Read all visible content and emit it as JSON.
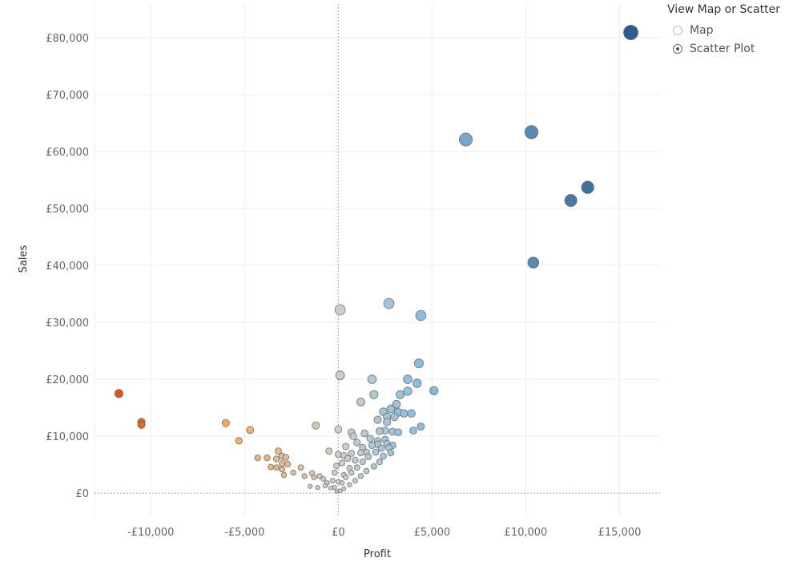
{
  "chart_data": {
    "type": "scatter",
    "xlabel": "Profit",
    "ylabel": "Sales",
    "xlim": [
      -13000,
      17200
    ],
    "ylim": [
      -4200,
      85900
    ],
    "x_ticks": [
      -10000,
      -5000,
      0,
      5000,
      10000,
      15000
    ],
    "x_tick_labels": [
      "-£10,000",
      "-£5,000",
      "£0",
      "£5,000",
      "£10,000",
      "£15,000"
    ],
    "y_ticks": [
      0,
      10000,
      20000,
      30000,
      40000,
      50000,
      60000,
      70000,
      80000
    ],
    "y_tick_labels": [
      "£0",
      "£10,000",
      "£20,000",
      "£30,000",
      "£40,000",
      "£50,000",
      "£60,000",
      "£70,000",
      "£80,000"
    ],
    "grid": true,
    "size_by": "Sales",
    "color_by": "Profit",
    "colors": {
      "negative": "#d4521d",
      "mid_negative": "#f5a95c",
      "zero": "#cfcfca",
      "mid_positive": "#8fc0e0",
      "positive": "#2a5a8c"
    },
    "points": [
      [
        15600,
        80900
      ],
      [
        10300,
        63400
      ],
      [
        6800,
        62100
      ],
      [
        13300,
        53700
      ],
      [
        12400,
        51400
      ],
      [
        10400,
        40500
      ],
      [
        2700,
        33300
      ],
      [
        4400,
        31200
      ],
      [
        100,
        32200
      ],
      [
        100,
        20700
      ],
      [
        1800,
        20000
      ],
      [
        3700,
        20000
      ],
      [
        4300,
        22800
      ],
      [
        5100,
        18000
      ],
      [
        4200,
        19300
      ],
      [
        1900,
        17300
      ],
      [
        3300,
        17300
      ],
      [
        3700,
        17900
      ],
      [
        1200,
        16000
      ],
      [
        3100,
        15600
      ],
      [
        2800,
        14800
      ],
      [
        2400,
        14300
      ],
      [
        3200,
        14200
      ],
      [
        3500,
        14000
      ],
      [
        3900,
        14000
      ],
      [
        2600,
        13400
      ],
      [
        3000,
        13400
      ],
      [
        2100,
        12900
      ],
      [
        2600,
        12500
      ],
      [
        4400,
        11700
      ],
      [
        4000,
        11000
      ],
      [
        -11700,
        17500
      ],
      [
        -10500,
        12500
      ],
      [
        -10500,
        12000
      ],
      [
        -6000,
        12300
      ],
      [
        -4700,
        11100
      ],
      [
        -5300,
        9200
      ],
      [
        -1200,
        11900
      ],
      [
        0,
        11200
      ],
      [
        -500,
        7400
      ],
      [
        -3200,
        7400
      ],
      [
        -3000,
        6500
      ],
      [
        -3300,
        6000
      ],
      [
        -2800,
        6300
      ],
      [
        -3800,
        6200
      ],
      [
        -4300,
        6200
      ],
      [
        -3000,
        5200
      ],
      [
        -2700,
        5100
      ],
      [
        -3300,
        4500
      ],
      [
        -3000,
        4200
      ],
      [
        -3600,
        4600
      ],
      [
        -2900,
        3200
      ],
      [
        -2400,
        3600
      ],
      [
        -2000,
        4500
      ],
      [
        -1800,
        3000
      ],
      [
        -1400,
        3500
      ],
      [
        -1000,
        3000
      ],
      [
        -1300,
        2800
      ],
      [
        -800,
        2500
      ],
      [
        -600,
        1800
      ],
      [
        -1500,
        1200
      ],
      [
        -1100,
        1000
      ],
      [
        -700,
        1300
      ],
      [
        -400,
        900
      ],
      [
        -300,
        2200
      ],
      [
        -200,
        3600
      ],
      [
        -100,
        4800
      ],
      [
        200,
        5300
      ],
      [
        500,
        6100
      ],
      [
        700,
        7000
      ],
      [
        400,
        8200
      ],
      [
        700,
        10700
      ],
      [
        800,
        10000
      ],
      [
        1000,
        8900
      ],
      [
        1300,
        8000
      ],
      [
        1500,
        7200
      ],
      [
        1800,
        8400
      ],
      [
        2100,
        9200
      ],
      [
        2600,
        8700
      ],
      [
        2700,
        8000
      ],
      [
        2400,
        6500
      ],
      [
        2200,
        5500
      ],
      [
        1900,
        4700
      ],
      [
        1500,
        3900
      ],
      [
        1200,
        3000
      ],
      [
        900,
        2200
      ],
      [
        600,
        1500
      ],
      [
        300,
        800
      ],
      [
        100,
        400
      ],
      [
        -100,
        300
      ],
      [
        200,
        1800
      ],
      [
        400,
        2800
      ],
      [
        700,
        3600
      ],
      [
        1000,
        4500
      ],
      [
        1300,
        5500
      ],
      [
        1600,
        6400
      ],
      [
        2000,
        7200
      ],
      [
        2300,
        7900
      ],
      [
        1200,
        7100
      ],
      [
        900,
        5800
      ],
      [
        600,
        4400
      ],
      [
        300,
        3200
      ],
      [
        0,
        2000
      ],
      [
        -200,
        1000
      ],
      [
        2800,
        7100
      ],
      [
        1700,
        9600
      ],
      [
        1400,
        10500
      ],
      [
        2200,
        10900
      ],
      [
        2500,
        11000
      ],
      [
        2900,
        10800
      ],
      [
        2100,
        8600
      ],
      [
        2500,
        9400
      ],
      [
        0,
        6800
      ],
      [
        300,
        6600
      ],
      [
        3200,
        10700
      ],
      [
        2900,
        8400
      ]
    ]
  },
  "legend": {
    "title": "View Map or Scatter",
    "options": [
      {
        "label": "Map",
        "selected": false
      },
      {
        "label": "Scatter Plot",
        "selected": true
      }
    ]
  }
}
